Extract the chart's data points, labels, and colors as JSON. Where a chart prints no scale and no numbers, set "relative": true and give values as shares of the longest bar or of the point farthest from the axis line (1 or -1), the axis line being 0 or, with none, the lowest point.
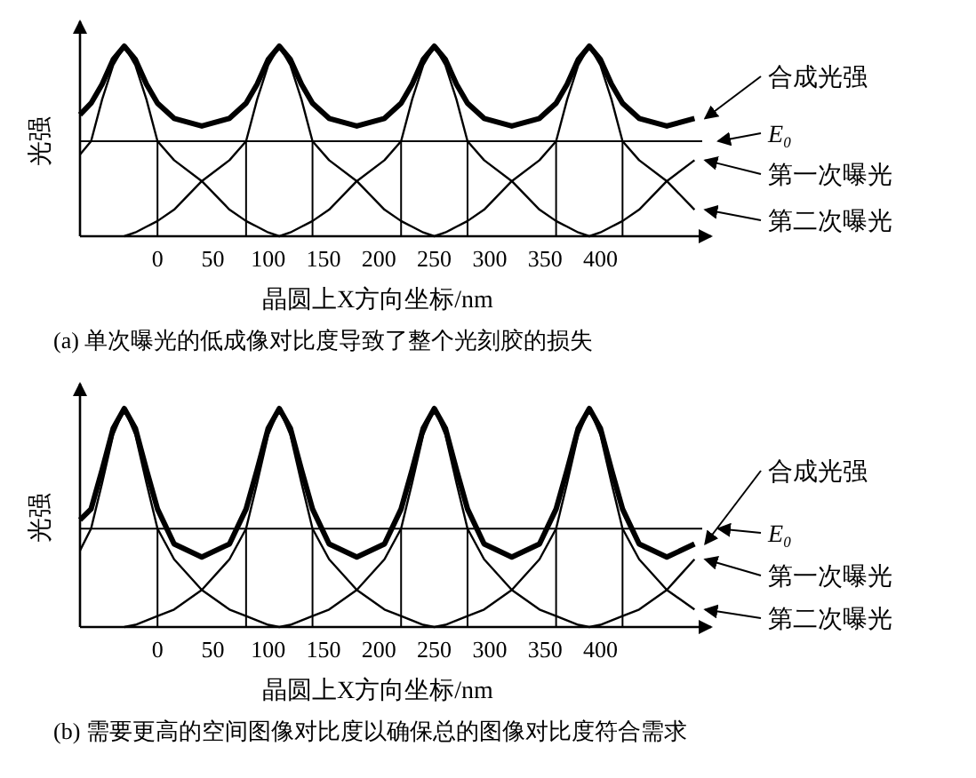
{
  "chart_data": [
    {
      "type": "line",
      "relative": true,
      "legend": "right",
      "ylabel": "光强",
      "xlabel": "晶圆上X方向坐标/nm",
      "annotations": [
        "(a) 单次曝光的低成像对比度导致了整个光刻胶的损失"
      ],
      "x": [
        -70,
        -60,
        -50,
        -40,
        -30,
        -20,
        -10,
        0,
        15,
        40,
        65,
        80,
        90,
        100,
        110,
        120,
        130,
        140,
        155,
        180,
        205,
        220,
        230,
        240,
        250,
        260,
        270,
        280,
        295,
        320,
        345,
        360,
        370,
        380,
        390,
        400,
        410,
        420,
        435,
        460,
        485
      ],
      "xlim": [
        -70,
        500
      ],
      "xticks": [
        0,
        50,
        100,
        150,
        200,
        250,
        300,
        350,
        400
      ],
      "series": [
        {
          "name": "合成光强",
          "color": "#000000",
          "values": [
            0.64,
            0.7,
            0.8,
            0.93,
            1,
            0.93,
            0.8,
            0.7,
            0.62,
            0.58,
            0.62,
            0.7,
            0.8,
            0.93,
            1,
            0.93,
            0.8,
            0.7,
            0.62,
            0.58,
            0.62,
            0.7,
            0.8,
            0.93,
            1,
            0.93,
            0.8,
            0.7,
            0.62,
            0.58,
            0.62,
            0.7,
            0.8,
            0.93,
            1,
            0.93,
            0.8,
            0.7,
            0.62,
            0.58,
            0.62
          ]
        },
        {
          "name": "第一次曝光",
          "color": "#000000",
          "values": [
            0.43,
            0.5,
            0.72,
            0.9,
            1,
            0.9,
            0.72,
            0.5,
            0.4,
            0.29,
            0.14,
            0.08,
            0.05,
            0.02,
            0,
            0.02,
            0.05,
            0.08,
            0.14,
            0.29,
            0.4,
            0.5,
            0.72,
            0.9,
            1,
            0.9,
            0.72,
            0.5,
            0.4,
            0.29,
            0.14,
            0.08,
            0.05,
            0.02,
            0,
            0.02,
            0.05,
            0.08,
            0.14,
            0.29,
            0.4
          ]
        },
        {
          "name": "第二次曝光",
          "color": "#000000",
          "values": [
            null,
            null,
            null,
            null,
            0,
            0.02,
            0.05,
            0.08,
            0.14,
            0.29,
            0.4,
            0.5,
            0.72,
            0.9,
            1,
            0.9,
            0.72,
            0.5,
            0.4,
            0.29,
            0.14,
            0.08,
            0.05,
            0.02,
            0,
            0.02,
            0.05,
            0.08,
            0.14,
            0.29,
            0.4,
            0.5,
            0.72,
            0.9,
            1,
            0.9,
            0.72,
            0.5,
            0.4,
            0.29,
            0.14
          ]
        }
      ],
      "ref_lines": [
        {
          "axis": "y",
          "value": 0.5,
          "label": "E₀"
        },
        {
          "axis": "x",
          "value": 0
        },
        {
          "axis": "x",
          "value": 80
        },
        {
          "axis": "x",
          "value": 140
        },
        {
          "axis": "x",
          "value": 220
        },
        {
          "axis": "x",
          "value": 280
        },
        {
          "axis": "x",
          "value": 360
        },
        {
          "axis": "x",
          "value": 420
        }
      ]
    },
    {
      "type": "line",
      "relative": true,
      "legend": "right",
      "ylabel": "光强",
      "xlabel": "晶圆上X方向坐标/nm",
      "annotations": [
        "(b) 需要更高的空间图像对比度以确保总的图像对比度符合需求"
      ],
      "x": [
        -70,
        -60,
        -50,
        -40,
        -30,
        -20,
        -10,
        0,
        15,
        40,
        65,
        80,
        90,
        100,
        110,
        120,
        130,
        140,
        155,
        180,
        205,
        220,
        230,
        240,
        250,
        260,
        270,
        280,
        295,
        320,
        345,
        360,
        370,
        380,
        390,
        400,
        410,
        420,
        435,
        460,
        485
      ],
      "xlim": [
        -70,
        500
      ],
      "xticks": [
        0,
        50,
        100,
        150,
        200,
        250,
        300,
        350,
        400
      ],
      "series": [
        {
          "name": "合成光强",
          "color": "#000000",
          "values": [
            0.49,
            0.54,
            0.72,
            0.91,
            1,
            0.91,
            0.72,
            0.54,
            0.38,
            0.32,
            0.38,
            0.54,
            0.72,
            0.91,
            1,
            0.91,
            0.72,
            0.54,
            0.38,
            0.32,
            0.38,
            0.54,
            0.72,
            0.91,
            1,
            0.91,
            0.72,
            0.54,
            0.38,
            0.32,
            0.38,
            0.54,
            0.72,
            0.91,
            1,
            0.91,
            0.72,
            0.54,
            0.38,
            0.32,
            0.38
          ]
        },
        {
          "name": "第一次曝光",
          "color": "#000000",
          "values": [
            0.35,
            0.45,
            0.66,
            0.88,
            1,
            0.88,
            0.66,
            0.45,
            0.31,
            0.17,
            0.08,
            0.05,
            0.03,
            0.01,
            0,
            0.01,
            0.03,
            0.05,
            0.08,
            0.17,
            0.31,
            0.45,
            0.66,
            0.88,
            1,
            0.88,
            0.66,
            0.45,
            0.31,
            0.17,
            0.08,
            0.05,
            0.03,
            0.01,
            0,
            0.01,
            0.03,
            0.05,
            0.08,
            0.17,
            0.31
          ]
        },
        {
          "name": "第二次曝光",
          "color": "#000000",
          "values": [
            null,
            null,
            null,
            null,
            0,
            0.01,
            0.03,
            0.05,
            0.08,
            0.17,
            0.31,
            0.45,
            0.66,
            0.88,
            1,
            0.88,
            0.66,
            0.45,
            0.31,
            0.17,
            0.08,
            0.05,
            0.03,
            0.01,
            0,
            0.01,
            0.03,
            0.05,
            0.08,
            0.17,
            0.31,
            0.45,
            0.66,
            0.88,
            1,
            0.88,
            0.66,
            0.45,
            0.31,
            0.17,
            0.08
          ]
        }
      ],
      "ref_lines": [
        {
          "axis": "y",
          "value": 0.45,
          "label": "E₀"
        },
        {
          "axis": "x",
          "value": 0
        },
        {
          "axis": "x",
          "value": 80
        },
        {
          "axis": "x",
          "value": 140
        },
        {
          "axis": "x",
          "value": 220
        },
        {
          "axis": "x",
          "value": 280
        },
        {
          "axis": "x",
          "value": 360
        },
        {
          "axis": "x",
          "value": 420
        }
      ]
    }
  ]
}
